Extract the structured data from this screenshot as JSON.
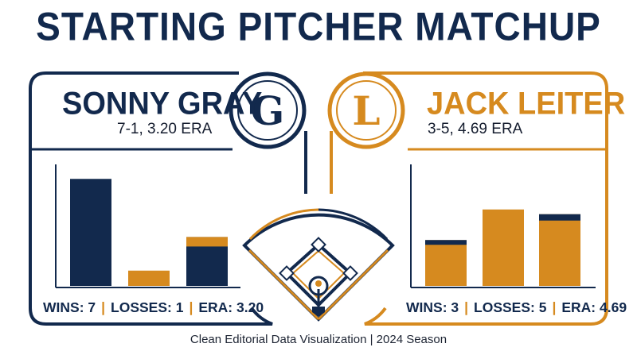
{
  "title": "STARTING PITCHER MATCHUP",
  "footer": "Clean Editorial Data Visualization | 2024 Season",
  "colors": {
    "navy": "#12294d",
    "orange": "#d68a1f",
    "background": "#ffffff"
  },
  "left": {
    "name": "SONNY GRAY",
    "record": "7-1, 3.20 ERA",
    "badge_letter": "G",
    "stats": {
      "wins_label": "WINS: 7",
      "losses_label": "LOSSES: 1",
      "era_label": "ERA: 3.20"
    }
  },
  "right": {
    "name": "JACK LEITER",
    "record": "3-5, 4.69 ERA",
    "badge_letter": "L",
    "stats": {
      "wins_label": "WINS: 3",
      "losses_label": "LOSSES: 5",
      "era_label": "ERA: 4.69"
    }
  },
  "chart_data": [
    {
      "type": "bar",
      "title": "SONNY GRAY",
      "categories": [
        "Wins",
        "Losses",
        "ERA"
      ],
      "values": [
        7,
        1,
        3.2
      ],
      "bar_colors": [
        "#12294d",
        "#d68a1f",
        "#12294d"
      ],
      "cap_color": "#d68a1f",
      "ylim": [
        0,
        8
      ],
      "grid": false
    },
    {
      "type": "bar",
      "title": "JACK LEITER",
      "categories": [
        "Wins",
        "Losses",
        "ERA"
      ],
      "values": [
        3,
        5,
        4.69
      ],
      "bar_colors": [
        "#d68a1f",
        "#d68a1f",
        "#d68a1f"
      ],
      "cap_color": "#12294d",
      "ylim": [
        0,
        8
      ],
      "grid": false
    }
  ]
}
